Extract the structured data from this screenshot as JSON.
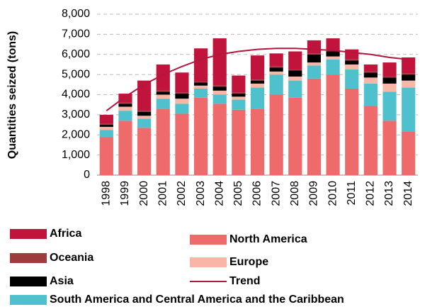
{
  "chart_data": {
    "type": "bar",
    "stacked": true,
    "ylabel": "Quantities seized (tons)",
    "categories": [
      "1998",
      "1999",
      "2000",
      "2001",
      "2002",
      "2003",
      "2004",
      "2005",
      "2006",
      "2007",
      "2008",
      "2009",
      "2010",
      "2011",
      "2012",
      "2013",
      "2014"
    ],
    "series": [
      {
        "name": "North America",
        "color": "#ef6b6b",
        "values": [
          1900,
          2700,
          2350,
          3300,
          3050,
          3850,
          3550,
          3250,
          3300,
          4000,
          3850,
          4800,
          5000,
          4300,
          3450,
          2700,
          2150
        ]
      },
      {
        "name": "South America and Central America and the Caribbean",
        "color": "#4fc1cc",
        "values": [
          350,
          500,
          450,
          500,
          500,
          450,
          450,
          500,
          1050,
          1000,
          850,
          650,
          750,
          950,
          1100,
          1450,
          2200
        ]
      },
      {
        "name": "Europe",
        "color": "#f9b6a6",
        "values": [
          150,
          200,
          150,
          200,
          250,
          150,
          200,
          150,
          200,
          150,
          200,
          150,
          150,
          250,
          300,
          400,
          350
        ]
      },
      {
        "name": "Asia",
        "color": "#000000",
        "values": [
          100,
          150,
          200,
          150,
          250,
          150,
          200,
          150,
          150,
          200,
          300,
          400,
          250,
          200,
          250,
          300,
          300
        ]
      },
      {
        "name": "Oceania",
        "color": "#9e3c3c",
        "values": [
          50,
          50,
          50,
          50,
          50,
          50,
          50,
          50,
          50,
          50,
          50,
          50,
          50,
          50,
          50,
          50,
          50
        ]
      },
      {
        "name": "Africa",
        "color": "#c0143c",
        "values": [
          450,
          450,
          1500,
          1300,
          1000,
          1650,
          2350,
          850,
          1200,
          650,
          900,
          650,
          600,
          500,
          350,
          700,
          800
        ]
      }
    ],
    "trend": {
      "name": "Trend",
      "color": "#b3163e",
      "values": [
        3200,
        3900,
        4500,
        5000,
        5400,
        5750,
        6000,
        6150,
        6250,
        6300,
        6300,
        6250,
        6200,
        6100,
        6000,
        5850,
        5750
      ]
    },
    "ylim": [
      0,
      8000
    ],
    "yticks": [
      0,
      {
        "value": 1000,
        "label": "1,000"
      },
      {
        "value": 2000,
        "label": "2,000"
      },
      {
        "value": 3000,
        "label": "3,000"
      },
      {
        "value": 4000,
        "label": "4,000"
      },
      {
        "value": 5000,
        "label": "5,000"
      },
      {
        "value": 6000,
        "label": "6,000"
      },
      {
        "value": 7000,
        "label": "7,000"
      },
      {
        "value": 8000,
        "label": "8,000"
      }
    ],
    "grid": true
  }
}
